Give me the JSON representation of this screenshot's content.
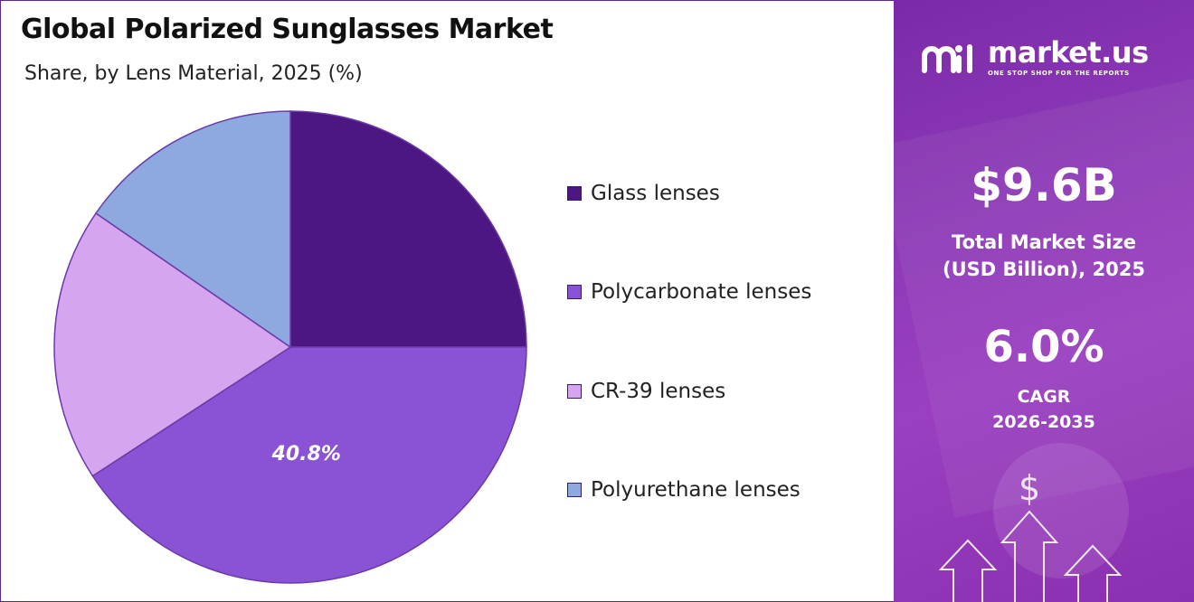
{
  "header": {
    "title": "Global Polarized Sunglasses Market",
    "subtitle": "Share, by Lens Material, 2025 (%)"
  },
  "chart_data": {
    "type": "pie",
    "categories": [
      "Glass lenses",
      "Polycarbonate lenses",
      "CR-39 lenses",
      "Polyurethane lenses"
    ],
    "values": [
      25.0,
      40.8,
      18.8,
      15.4
    ],
    "colors": [
      "#4c1683",
      "#8a52d4",
      "#d5a6ef",
      "#8ea8e0"
    ],
    "data_labels": [
      "",
      "40.8%",
      "",
      ""
    ],
    "legend_placement": "right",
    "start_angle": "12 o'clock, clockwise"
  },
  "panel": {
    "brand_name": "market.us",
    "brand_tagline": "ONE STOP SHOP FOR THE REPORTS",
    "market_size_value": "$9.6B",
    "market_size_label_line1": "Total Market Size",
    "market_size_label_line2": "(USD Billion), 2025",
    "cagr_value": "6.0%",
    "cagr_label_line1": "CAGR",
    "cagr_label_line2": "2026-2035",
    "dollar_symbol": "$",
    "icons": [
      "market-us-logo-icon",
      "dollar-icon",
      "growth-arrows-icon"
    ]
  }
}
